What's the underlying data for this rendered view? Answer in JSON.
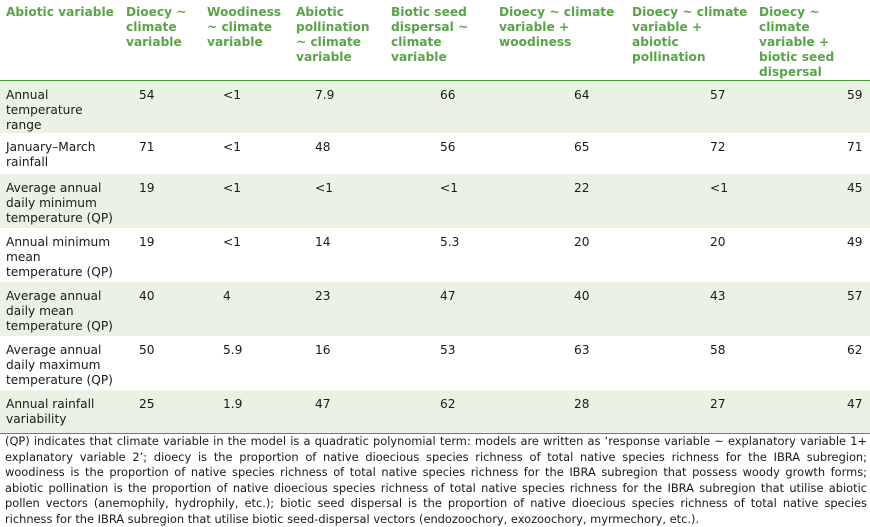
{
  "headers": [
    "Abiotic variable",
    "Dioecy ~ climate variable",
    "Woodiness ~ climate variable",
    "Abiotic pollination ~ climate variable",
    "Biotic seed dispersal ~ climate variable",
    "Dioecy ~ climate variable + woodiness",
    "Dioecy ~ climate variable + abiotic pollination",
    "Dioecy ~ climate variable + biotic seed dispersal"
  ],
  "rows": [
    {
      "label": "Annual temperature range",
      "values": [
        "54",
        "<1",
        "7.9",
        "66",
        "64",
        "57",
        "59"
      ]
    },
    {
      "label": "January–March rainfall",
      "values": [
        "71",
        "<1",
        "48",
        "56",
        "65",
        "72",
        "71"
      ]
    },
    {
      "label": "Average annual daily minimum temperature (QP)",
      "values": [
        "19",
        "<1",
        "<1",
        "<1",
        "22",
        "<1",
        "45"
      ]
    },
    {
      "label": "Annual minimum mean temperature (QP)",
      "values": [
        "19",
        "<1",
        "14",
        "5.3",
        "20",
        "20",
        "49"
      ]
    },
    {
      "label": "Average annual daily mean temperature (QP)",
      "values": [
        "40",
        "4",
        "23",
        "47",
        "40",
        "43",
        "57"
      ]
    },
    {
      "label": "Average annual daily maximum temperature (QP)",
      "values": [
        "50",
        "5.9",
        "16",
        "53",
        "63",
        "58",
        "62"
      ]
    },
    {
      "label": "Annual rainfall variability",
      "values": [
        "25",
        "1.9",
        "47",
        "62",
        "28",
        "27",
        "47"
      ]
    }
  ],
  "footnote": "(QP) indicates that climate variable in the model is a quadratic polynomial term: models are written as ‘response variable ~ explanatory variable 1+ explanatory variable 2’; dioecy is the proportion of native dioecious species richness of total native species richness for the IBRA subregion; woodiness is the proportion of native species richness of total native species richness for the IBRA subregion that possess woody growth forms; abiotic pollination is the proportion of native dioecious species richness of total native species richness for the IBRA subregion that utilise abiotic pollen vectors (anemophily, hydrophily, etc.); biotic seed dispersal is the proportion of native dioecious species richness of total native species richness for the IBRA subregion that utilise biotic seed-dispersal vectors (endozoochory, exozoochory, myrmechory, etc.).",
  "colors": {
    "header_text": "#5aa34a",
    "row_shade": "#eaf3e3",
    "rule": "#4a9a3c"
  }
}
